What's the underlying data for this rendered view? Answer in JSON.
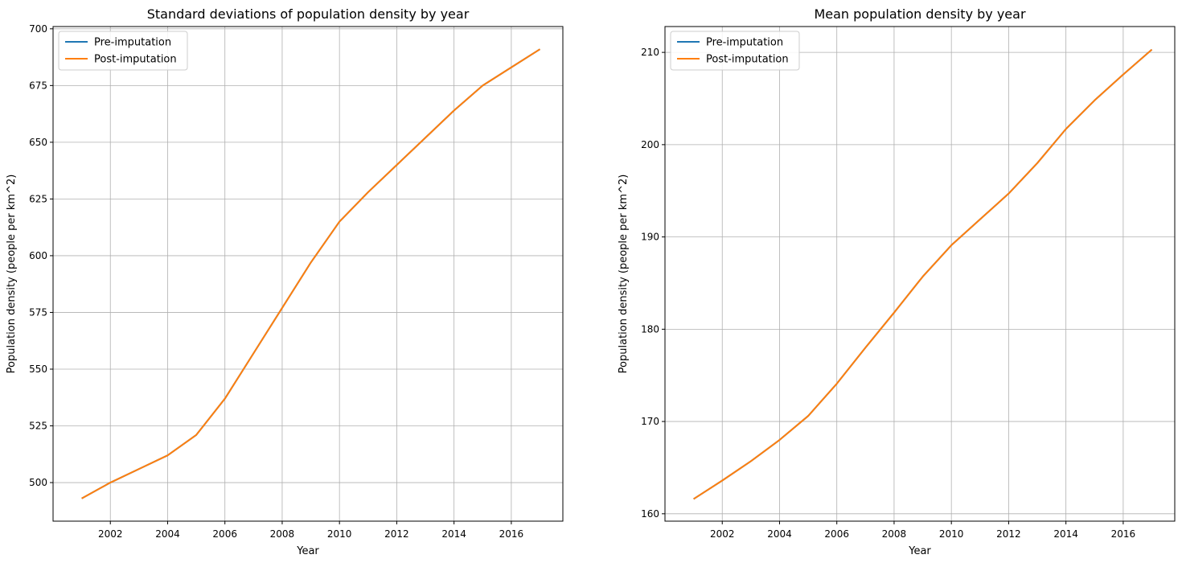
{
  "chart_data": [
    {
      "type": "line",
      "title": "Standard deviations of population density by year",
      "xlabel": "Year",
      "ylabel": "Population density (people per km^2)",
      "xlim": [
        2000,
        2017.8
      ],
      "ylim": [
        483,
        701
      ],
      "xticks": [
        2002,
        2004,
        2006,
        2008,
        2010,
        2012,
        2014,
        2016
      ],
      "yticks": [
        500,
        525,
        550,
        575,
        600,
        625,
        650,
        675,
        700
      ],
      "grid": true,
      "legend": "top-left",
      "x": [
        2001,
        2002,
        2003,
        2004,
        2005,
        2006,
        2007,
        2008,
        2009,
        2010,
        2011,
        2012,
        2013,
        2014,
        2015,
        2016,
        2017
      ],
      "series": [
        {
          "name": "Pre-imputation",
          "color": "#1f77b4",
          "values": [
            493,
            500,
            506,
            512,
            521,
            537,
            557,
            577,
            597,
            615,
            628,
            640,
            652,
            664,
            675,
            683,
            691
          ]
        },
        {
          "name": "Post-imputation",
          "color": "#ff7f0e",
          "values": [
            493,
            500,
            506,
            512,
            521,
            537,
            557,
            577,
            597,
            615,
            628,
            640,
            652,
            664,
            675,
            683,
            691
          ]
        }
      ]
    },
    {
      "type": "line",
      "title": "Mean population density by year",
      "xlabel": "Year",
      "ylabel": "Population density (people per km^2)",
      "xlim": [
        2000,
        2017.8
      ],
      "ylim": [
        159.2,
        212.8
      ],
      "xticks": [
        2002,
        2004,
        2006,
        2008,
        2010,
        2012,
        2014,
        2016
      ],
      "yticks": [
        160,
        170,
        180,
        190,
        200,
        210
      ],
      "grid": true,
      "legend": "top-left",
      "x": [
        2001,
        2002,
        2003,
        2004,
        2005,
        2006,
        2007,
        2008,
        2009,
        2010,
        2011,
        2012,
        2013,
        2014,
        2015,
        2016,
        2017
      ],
      "series": [
        {
          "name": "Pre-imputation",
          "color": "#1f77b4",
          "values": [
            161.6,
            163.6,
            165.7,
            168.0,
            170.6,
            174.1,
            178.0,
            181.8,
            185.7,
            189.1,
            191.9,
            194.7,
            198.0,
            201.7,
            204.8,
            207.6,
            210.3
          ]
        },
        {
          "name": "Post-imputation",
          "color": "#ff7f0e",
          "values": [
            161.6,
            163.6,
            165.7,
            168.0,
            170.6,
            174.1,
            178.0,
            181.8,
            185.7,
            189.1,
            191.9,
            194.7,
            198.0,
            201.7,
            204.8,
            207.6,
            210.3
          ]
        }
      ]
    }
  ]
}
